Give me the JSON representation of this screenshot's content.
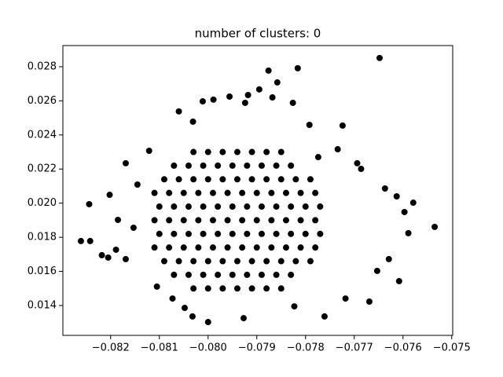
{
  "chart_data": {
    "type": "scatter",
    "title": "number of clusters: 0",
    "color": "#000000",
    "xlim": [
      -0.08298,
      -0.07498
    ],
    "ylim": [
      0.01225,
      0.02924
    ],
    "xticks": [
      {
        "value": -0.082,
        "label": "−0.082"
      },
      {
        "value": -0.081,
        "label": "−0.081"
      },
      {
        "value": -0.08,
        "label": "−0.080"
      },
      {
        "value": -0.079,
        "label": "−0.079"
      },
      {
        "value": -0.078,
        "label": "−0.078"
      },
      {
        "value": -0.077,
        "label": "−0.077"
      },
      {
        "value": -0.076,
        "label": "−0.076"
      },
      {
        "value": -0.075,
        "label": "−0.075"
      }
    ],
    "yticks": [
      {
        "value": 0.014,
        "label": "0.014"
      },
      {
        "value": 0.016,
        "label": "0.016"
      },
      {
        "value": 0.018,
        "label": "0.018"
      },
      {
        "value": 0.02,
        "label": "0.020"
      },
      {
        "value": 0.022,
        "label": "0.022"
      },
      {
        "value": 0.024,
        "label": "0.024"
      },
      {
        "value": 0.026,
        "label": "0.026"
      },
      {
        "value": 0.028,
        "label": "0.028"
      }
    ],
    "x": [
      -0.0803,
      -0.08,
      -0.0797,
      -0.0794,
      -0.0791,
      -0.0788,
      -0.0785,
      -0.0807,
      -0.0804,
      -0.0801,
      -0.0798,
      -0.0795,
      -0.0792,
      -0.0789,
      -0.0786,
      -0.0783,
      -0.0809,
      -0.0806,
      -0.0803,
      -0.08,
      -0.0797,
      -0.0794,
      -0.0791,
      -0.0788,
      -0.0785,
      -0.0782,
      -0.0779,
      -0.0811,
      -0.0808,
      -0.0805,
      -0.0802,
      -0.0799,
      -0.0796,
      -0.0793,
      -0.079,
      -0.0787,
      -0.0784,
      -0.0781,
      -0.0778,
      -0.081,
      -0.0807,
      -0.0804,
      -0.0801,
      -0.0798,
      -0.0795,
      -0.0792,
      -0.0789,
      -0.0786,
      -0.0783,
      -0.078,
      -0.0777,
      -0.0811,
      -0.0808,
      -0.0805,
      -0.0802,
      -0.0799,
      -0.0796,
      -0.0793,
      -0.079,
      -0.0787,
      -0.0784,
      -0.0781,
      -0.0778,
      -0.081,
      -0.0807,
      -0.0804,
      -0.0801,
      -0.0798,
      -0.0795,
      -0.0792,
      -0.0789,
      -0.0786,
      -0.0783,
      -0.078,
      -0.0777,
      -0.0811,
      -0.0808,
      -0.0805,
      -0.0802,
      -0.0799,
      -0.0796,
      -0.0793,
      -0.079,
      -0.0787,
      -0.0784,
      -0.0781,
      -0.0778,
      -0.0809,
      -0.0806,
      -0.0803,
      -0.08,
      -0.0797,
      -0.0794,
      -0.0791,
      -0.0788,
      -0.0785,
      -0.0782,
      -0.0779,
      -0.0807,
      -0.0804,
      -0.0801,
      -0.0798,
      -0.0795,
      -0.0792,
      -0.0789,
      -0.0786,
      -0.0783,
      -0.0803,
      -0.08,
      -0.0797,
      -0.0794,
      -0.0791,
      -0.0788,
      -0.0785,
      -0.07648,
      -0.07816,
      -0.07876,
      -0.07858,
      -0.07895,
      -0.07918,
      -0.07868,
      -0.07826,
      -0.07924,
      -0.08011,
      -0.07989,
      -0.07956,
      -0.0806,
      -0.08031,
      -0.07792,
      -0.07724,
      -0.08121,
      -0.08244,
      -0.08261,
      -0.08242,
      -0.08218,
      -0.08205,
      -0.08189,
      -0.07579,
      -0.07535,
      -0.07589,
      -0.07608,
      -0.07669,
      -0.07761,
      -0.08,
      -0.08032,
      -0.07927,
      -0.08048,
      -0.07823,
      -0.08169,
      -0.08202,
      -0.08145,
      -0.07694,
      -0.07686,
      -0.07637,
      -0.07613,
      -0.07597,
      -0.07629,
      -0.07653,
      -0.07718,
      -0.08105,
      -0.08073,
      -0.08169,
      -0.08153,
      -0.08185,
      -0.07734,
      -0.07774
    ],
    "values": [
      0.015,
      0.015,
      0.015,
      0.015,
      0.015,
      0.015,
      0.015,
      0.0158,
      0.0158,
      0.0158,
      0.0158,
      0.0158,
      0.0158,
      0.0158,
      0.0158,
      0.0158,
      0.0166,
      0.0166,
      0.0166,
      0.0166,
      0.0166,
      0.0166,
      0.0166,
      0.0166,
      0.0166,
      0.0166,
      0.0166,
      0.0174,
      0.0174,
      0.0174,
      0.0174,
      0.0174,
      0.0174,
      0.0174,
      0.0174,
      0.0174,
      0.0174,
      0.0174,
      0.0174,
      0.0182,
      0.0182,
      0.0182,
      0.0182,
      0.0182,
      0.0182,
      0.0182,
      0.0182,
      0.0182,
      0.0182,
      0.0182,
      0.0182,
      0.019,
      0.019,
      0.019,
      0.019,
      0.019,
      0.019,
      0.019,
      0.019,
      0.019,
      0.019,
      0.019,
      0.019,
      0.0198,
      0.0198,
      0.0198,
      0.0198,
      0.0198,
      0.0198,
      0.0198,
      0.0198,
      0.0198,
      0.0198,
      0.0198,
      0.0198,
      0.0206,
      0.0206,
      0.0206,
      0.0206,
      0.0206,
      0.0206,
      0.0206,
      0.0206,
      0.0206,
      0.0206,
      0.0206,
      0.0206,
      0.0214,
      0.0214,
      0.0214,
      0.0214,
      0.0214,
      0.0214,
      0.0214,
      0.0214,
      0.0214,
      0.0214,
      0.0214,
      0.0222,
      0.0222,
      0.0222,
      0.0222,
      0.0222,
      0.0222,
      0.0222,
      0.0222,
      0.0222,
      0.023,
      0.023,
      0.023,
      0.023,
      0.023,
      0.023,
      0.023,
      0.02851,
      0.02791,
      0.02777,
      0.02708,
      0.02667,
      0.02634,
      0.0262,
      0.02588,
      0.02588,
      0.02597,
      0.02607,
      0.02625,
      0.02538,
      0.02478,
      0.02459,
      0.02455,
      0.02307,
      0.01994,
      0.01778,
      0.01778,
      0.01695,
      0.01681,
      0.01727,
      0.02003,
      0.01861,
      0.01824,
      0.01543,
      0.01423,
      0.01336,
      0.01303,
      0.01336,
      0.01326,
      0.01386,
      0.01395,
      0.02234,
      0.02049,
      0.02109,
      0.02234,
      0.02201,
      0.02086,
      0.0204,
      0.01948,
      0.01672,
      0.01603,
      0.01441,
      0.01511,
      0.01441,
      0.01672,
      0.01856,
      0.01902,
      0.02316,
      0.0227
    ]
  }
}
